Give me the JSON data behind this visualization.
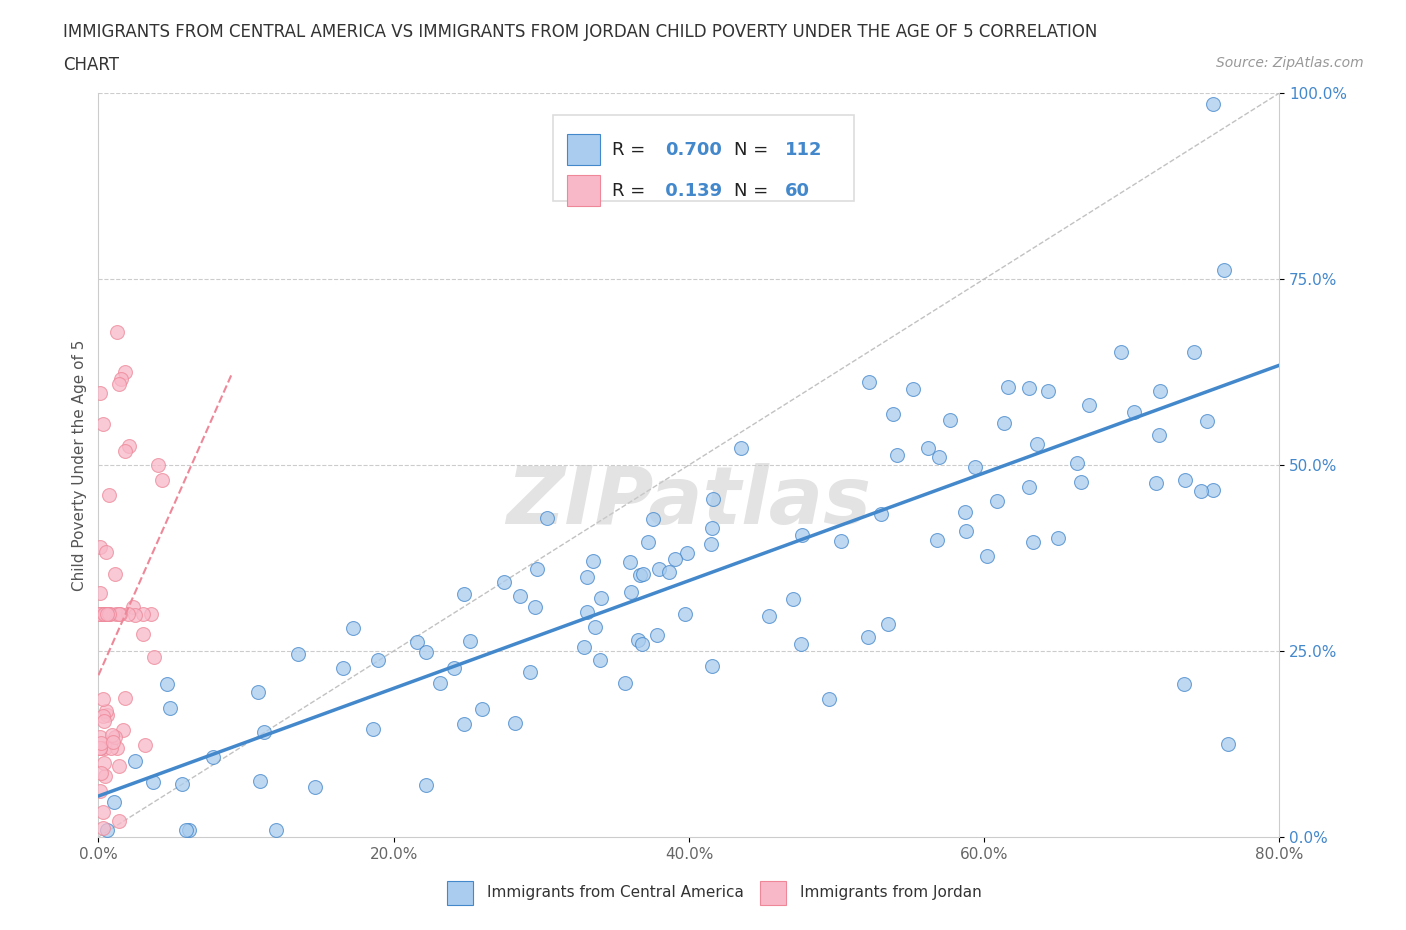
{
  "title_line1": "IMMIGRANTS FROM CENTRAL AMERICA VS IMMIGRANTS FROM JORDAN CHILD POVERTY UNDER THE AGE OF 5 CORRELATION",
  "title_line2": "CHART",
  "source": "Source: ZipAtlas.com",
  "ylabel": "Child Poverty Under the Age of 5",
  "xlabel_ca": "Immigrants from Central America",
  "xlabel_jordan": "Immigrants from Jordan",
  "R_ca": 0.7,
  "N_ca": 112,
  "R_jordan": 0.139,
  "N_jordan": 60,
  "xlim": [
    0.0,
    0.8
  ],
  "ylim": [
    0.0,
    1.0
  ],
  "xticks": [
    0.0,
    0.2,
    0.4,
    0.6,
    0.8
  ],
  "yticks": [
    0.0,
    0.25,
    0.5,
    0.75,
    1.0
  ],
  "xticklabels": [
    "0.0%",
    "20.0%",
    "40.0%",
    "60.0%",
    "80.0%"
  ],
  "yticklabels": [
    "0.0%",
    "25.0%",
    "50.0%",
    "75.0%",
    "100.0%"
  ],
  "color_ca": "#aaccee",
  "color_jordan": "#f8b8c8",
  "color_ca_line": "#4488cc",
  "color_jordan_line": "#ee8899",
  "color_diag": "#bbbbbb",
  "watermark": "ZIPatlas",
  "title_fontsize": 12,
  "tick_fontsize": 11,
  "ylabel_fontsize": 11,
  "source_fontsize": 10,
  "legend_fontsize": 13
}
